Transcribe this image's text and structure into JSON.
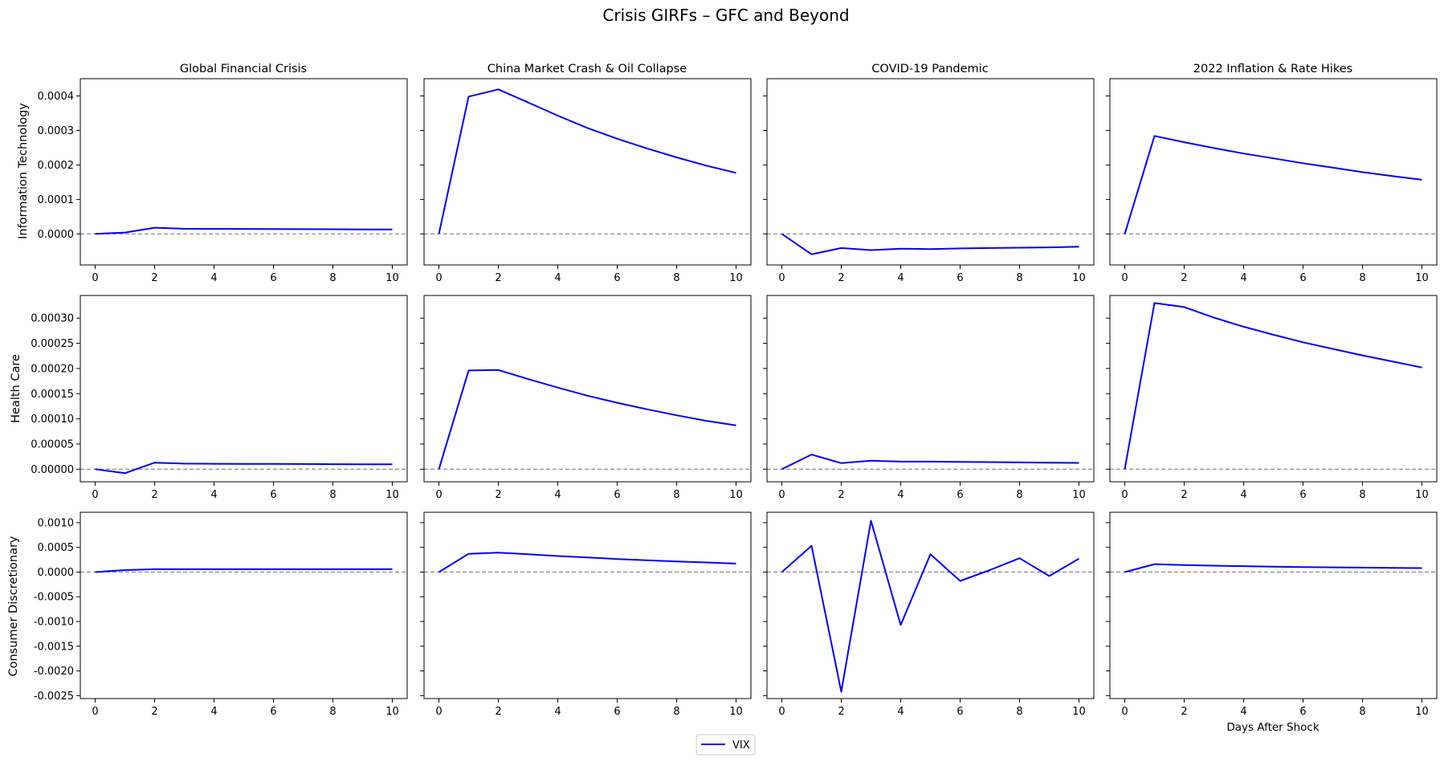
{
  "chart_data": {
    "type": "line",
    "title": "Crisis GIRFs – GFC and Beyond",
    "columns": [
      "Global Financial Crisis",
      "China Market Crash & Oil Collapse",
      "COVID-19 Pandemic",
      "2022 Inflation & Rate Hikes"
    ],
    "rows": [
      "Information Technology",
      "Health Care",
      "Consumer Discretionary"
    ],
    "xlabel": "Days After Shock",
    "x": [
      0,
      1,
      2,
      3,
      4,
      5,
      6,
      7,
      8,
      9,
      10
    ],
    "xticks": [
      0,
      2,
      4,
      6,
      8,
      10
    ],
    "xlim": [
      -0.5,
      10.5
    ],
    "legend": {
      "placement": "bottom-center",
      "entries": [
        "VIX"
      ]
    },
    "colors": {
      "series": "#0000ff",
      "zero_line": "#808080"
    },
    "zero_line": true,
    "grid": false,
    "row_axes": [
      {
        "ylim": [
          -9e-05,
          0.00045
        ],
        "yticks": [
          0,
          0.0001,
          0.0002,
          0.0003,
          0.0004
        ],
        "yticklabels": [
          "0.0000",
          "0.0001",
          "0.0002",
          "0.0003",
          "0.0004"
        ]
      },
      {
        "ylim": [
          -2.5e-05,
          0.000345
        ],
        "yticks": [
          0,
          5e-05,
          0.0001,
          0.00015,
          0.0002,
          0.00025,
          0.0003
        ],
        "yticklabels": [
          "0.00000",
          "0.00005",
          "0.00010",
          "0.00015",
          "0.00020",
          "0.00025",
          "0.00030"
        ]
      },
      {
        "ylim": [
          -0.00256,
          0.00121
        ],
        "yticks": [
          -0.0025,
          -0.002,
          -0.0015,
          -0.001,
          -0.0005,
          0,
          0.0005,
          0.001
        ],
        "yticklabels": [
          "-0.0025",
          "-0.0020",
          "-0.0015",
          "-0.0010",
          "-0.0005",
          "0.0000",
          "0.0005",
          "0.0010"
        ]
      }
    ],
    "series_name": "VIX",
    "panels": [
      [
        {
          "values": [
            0,
            4e-06,
            1.8e-05,
            1.5e-05,
            1.48e-05,
            1.45e-05,
            1.42e-05,
            1.38e-05,
            1.35e-05,
            1.32e-05,
            1.3e-05
          ]
        },
        {
          "values": [
            0,
            0.000398,
            0.000419,
            0.000381,
            0.000343,
            0.000307,
            0.000276,
            0.000248,
            0.000222,
            0.000198,
            0.000177
          ]
        },
        {
          "values": [
            0,
            -5.9e-05,
            -4.1e-05,
            -4.7e-05,
            -4.3e-05,
            -4.4e-05,
            -4.2e-05,
            -4.1e-05,
            -4e-05,
            -3.9e-05,
            -3.7e-05
          ]
        },
        {
          "values": [
            0,
            0.000284,
            0.000266,
            0.000249,
            0.000233,
            0.000219,
            0.000205,
            0.000192,
            0.000179,
            0.000168,
            0.000157
          ]
        }
      ],
      [
        {
          "values": [
            0,
            -8e-06,
            1.3e-05,
            1.1e-05,
            1.08e-05,
            1.06e-05,
            1.04e-05,
            1.02e-05,
            1e-05,
            9.8e-06,
            9.6e-06
          ]
        },
        {
          "values": [
            0,
            0.000196,
            0.000197,
            0.000179,
            0.000162,
            0.000146,
            0.000132,
            0.000119,
            0.000107,
            9.6e-05,
            8.7e-05
          ]
        },
        {
          "values": [
            0,
            2.9e-05,
            1.2e-05,
            1.7e-05,
            1.5e-05,
            1.5e-05,
            1.45e-05,
            1.4e-05,
            1.35e-05,
            1.3e-05,
            1.25e-05
          ]
        },
        {
          "values": [
            0,
            0.00033,
            0.000322,
            0.000301,
            0.000283,
            0.000267,
            0.000252,
            0.000239,
            0.000226,
            0.000214,
            0.000202
          ]
        }
      ],
      [
        {
          "values": [
            0,
            4e-05,
            5.8e-05,
            5.8e-05,
            5.8e-05,
            5.8e-05,
            5.8e-05,
            5.8e-05,
            5.8e-05,
            5.8e-05,
            5.8e-05
          ]
        },
        {
          "values": [
            0,
            0.00037,
            0.000395,
            0.00036,
            0.000325,
            0.000295,
            0.000265,
            0.00024,
            0.000215,
            0.000195,
            0.000172
          ]
        },
        {
          "values": [
            0,
            0.00053,
            -0.00242,
            0.00104,
            -0.00107,
            0.00036,
            -0.00018,
            4e-05,
            0.00028,
            -8e-05,
            0.00027
          ]
        },
        {
          "values": [
            0,
            0.00016,
            0.00014,
            0.00013,
            0.00012,
            0.00011,
            0.0001,
            9.5e-05,
            9e-05,
            8.5e-05,
            8e-05
          ]
        }
      ]
    ]
  }
}
